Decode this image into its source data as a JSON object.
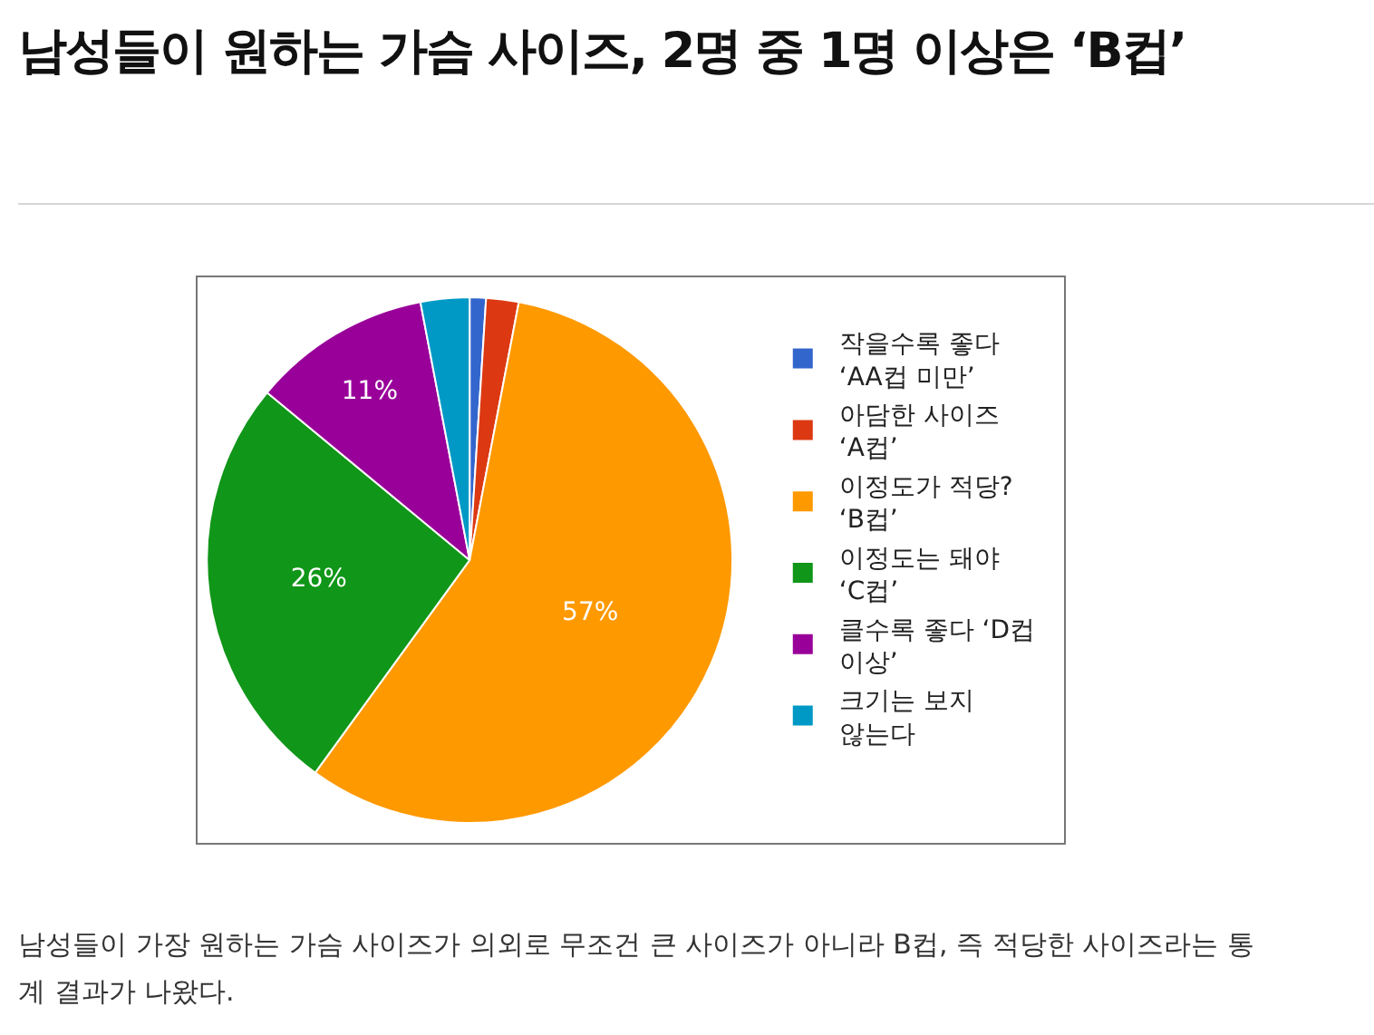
{
  "chart_data": {
    "type": "pie",
    "title": "남성들이 원하는 가슴 사이즈, 2명 중 1명 이상은 ‘B컵’",
    "categories": [
      "작을수록 좋다\n‘AA컵 미만’",
      "아담한 사이즈\n‘A컵’",
      "이정도가 적당?\n‘B컵’",
      "이정도는 돼야\n‘C컵’",
      "클수록 좋다 ‘D컵\n이상’",
      "크기는 보지\n않는다"
    ],
    "values": [
      1,
      2,
      57,
      26,
      11,
      3
    ],
    "colors": [
      "#3366cc",
      "#dc3912",
      "#ff9900",
      "#109618",
      "#990099",
      "#0099c6"
    ],
    "value_labels": [
      null,
      null,
      "57%",
      "26%",
      "11%",
      null
    ],
    "legend": "right",
    "annotations": [
      "남성들이 가장 원하는 가슴 사이즈가 의외로 무조건 큰 사이즈가 아니라 B컵, 즉 적당한 사이즈라는 통계 결과가 나왔다."
    ]
  }
}
